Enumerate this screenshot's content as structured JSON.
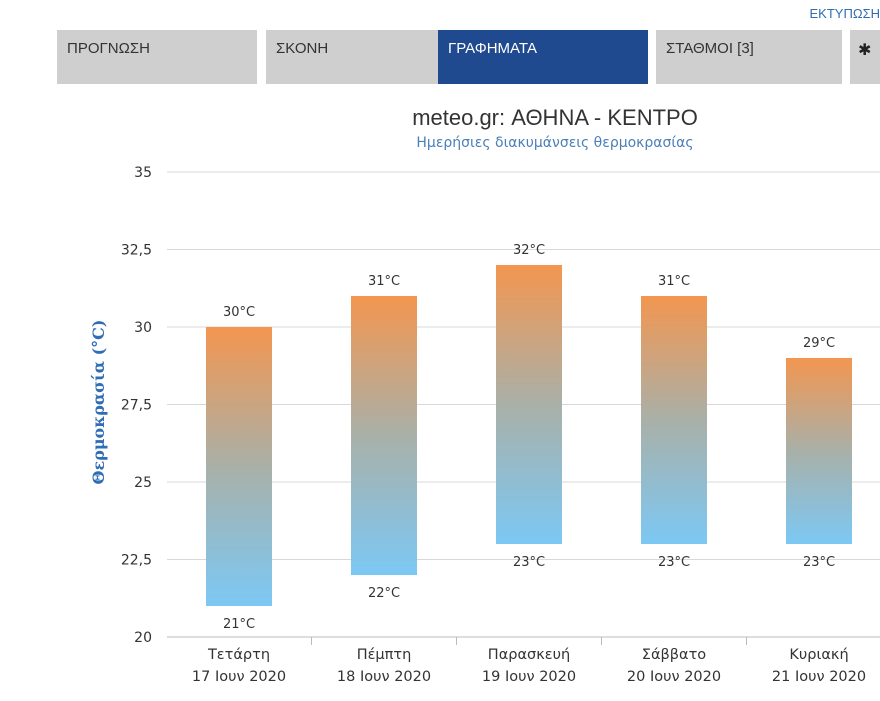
{
  "header": {
    "print_label": "ΕΚΤΥΠΩΣΗ",
    "tabs": [
      {
        "label": "ΠΡΟΓΝΩΣΗ",
        "active": false
      },
      {
        "label": "ΣΚΟΝΗ",
        "active": false
      },
      {
        "label": "ΓΡΑΦΗΜΑΤΑ",
        "active": true
      },
      {
        "label": "ΣΤΑΘΜΟΙ [3]",
        "active": false
      }
    ],
    "settings_icon": "gear-icon",
    "active_tab_color": "#1f4a8f",
    "inactive_tab_color": "#cfcfcf"
  },
  "chart_data": {
    "type": "bar",
    "title": "meteo.gr: ΑΘΗΝΑ - ΚΕΝΤΡΟ",
    "subtitle": "Ημερήσιες διακυμάνσεις θερμοκρασίας",
    "ylabel": "Θερμοκρασία (°C)",
    "xlabel": "",
    "ylim": [
      20,
      35
    ],
    "yticks": [
      "20",
      "22,5",
      "25",
      "27,5",
      "30",
      "32,5",
      "35"
    ],
    "grid": true,
    "categories": [
      {
        "day": "Τετάρτη",
        "date": "17 Ιουν 2020"
      },
      {
        "day": "Πέμπτη",
        "date": "18 Ιουν 2020"
      },
      {
        "day": "Παρασκευή",
        "date": "19 Ιουν 2020"
      },
      {
        "day": "Σάββατο",
        "date": "20 Ιουν 2020"
      },
      {
        "day": "Κυριακή",
        "date": "21 Ιουν 2020"
      }
    ],
    "series": [
      {
        "name": "",
        "low": [
          21,
          22,
          23,
          23,
          23
        ],
        "high": [
          30,
          31,
          32,
          31,
          29
        ]
      }
    ],
    "low_labels": [
      "21°C",
      "22°C",
      "23°C",
      "23°C",
      "23°C"
    ],
    "high_labels": [
      "30°C",
      "31°C",
      "32°C",
      "31°C",
      "29°C"
    ],
    "colors": {
      "high": "#f39650",
      "low": "#7cc8f4",
      "grid": "#d8d8d8"
    }
  }
}
